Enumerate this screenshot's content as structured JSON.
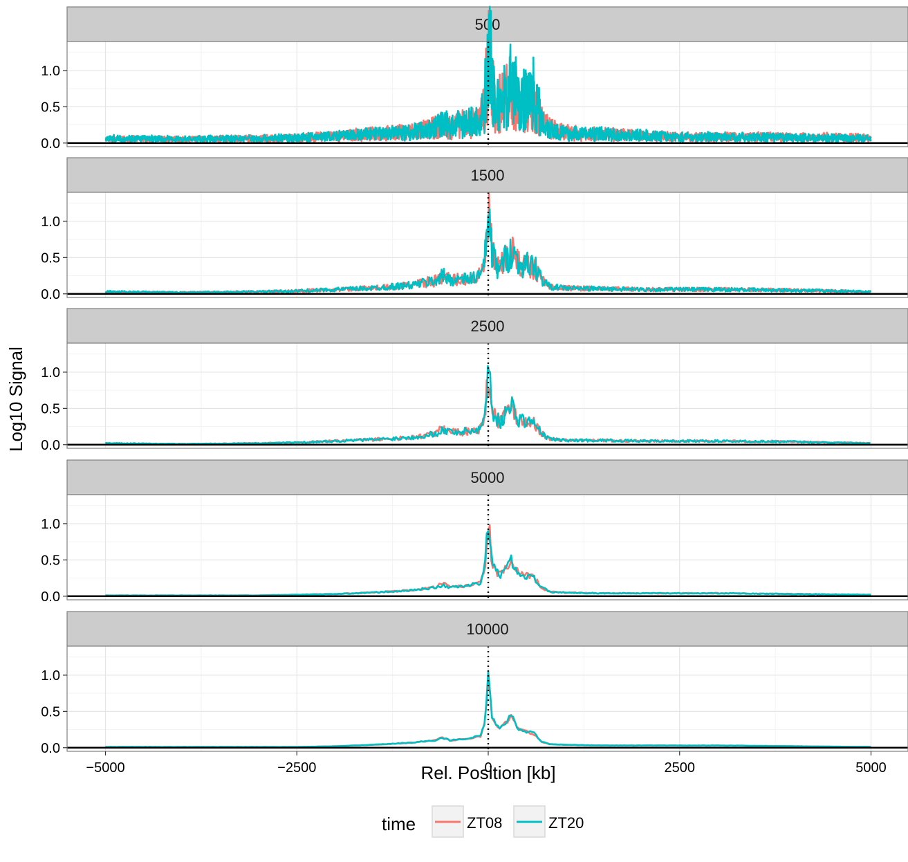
{
  "chart_data": {
    "type": "line",
    "facet_variable": "bin size",
    "facets": [
      "500",
      "1500",
      "2500",
      "5000",
      "10000"
    ],
    "xlabel": "Rel. Position [kb]",
    "ylabel": "Log10 Signal",
    "xlim": [
      -5000,
      5000
    ],
    "ylim": [
      -0.05,
      1.4
    ],
    "x_ticks": [
      -5000,
      -2500,
      0,
      2500,
      5000
    ],
    "x_tick_labels": [
      "−5000",
      "−2500",
      "0",
      "2500",
      "5000"
    ],
    "y_ticks": [
      0.0,
      0.5,
      1.0
    ],
    "y_tick_labels": [
      "0.0",
      "0.5",
      "1.0"
    ],
    "reference_lines": {
      "vertical_dotted_x": 0,
      "horizontal_solid_y": 0
    },
    "legend": {
      "title": "time",
      "position": "bottom",
      "entries": [
        "ZT08",
        "ZT20"
      ]
    },
    "series_colors": {
      "ZT08": "#F8766D",
      "ZT20": "#00BFC4"
    },
    "grid": true,
    "profile_x": [
      -5000,
      -4000,
      -3000,
      -2500,
      -2000,
      -1500,
      -1000,
      -700,
      -600,
      -500,
      -300,
      -100,
      -50,
      0,
      20,
      50,
      100,
      150,
      200,
      250,
      300,
      400,
      500,
      600,
      700,
      800,
      1000,
      1500,
      2000,
      2500,
      3000,
      4000,
      5000
    ],
    "panels": [
      {
        "facet": "500",
        "series": [
          {
            "name": "ZT08",
            "values": [
              0.05,
              0.05,
              0.06,
              0.07,
              0.09,
              0.12,
              0.15,
              0.2,
              0.25,
              0.22,
              0.26,
              0.3,
              0.55,
              1.05,
              1.25,
              0.75,
              0.45,
              0.55,
              0.6,
              0.65,
              0.72,
              0.55,
              0.55,
              0.5,
              0.3,
              0.2,
              0.14,
              0.12,
              0.1,
              0.08,
              0.08,
              0.08,
              0.07
            ]
          },
          {
            "name": "ZT20",
            "values": [
              0.06,
              0.05,
              0.06,
              0.07,
              0.09,
              0.12,
              0.15,
              0.2,
              0.28,
              0.22,
              0.27,
              0.3,
              0.55,
              1.1,
              1.28,
              0.78,
              0.45,
              0.55,
              0.6,
              0.65,
              0.85,
              0.55,
              0.6,
              0.7,
              0.3,
              0.2,
              0.13,
              0.12,
              0.1,
              0.08,
              0.08,
              0.07,
              0.06
            ]
          }
        ]
      },
      {
        "facet": "1500",
        "series": [
          {
            "name": "ZT08",
            "values": [
              0.02,
              0.02,
              0.03,
              0.04,
              0.06,
              0.08,
              0.12,
              0.18,
              0.25,
              0.2,
              0.2,
              0.25,
              0.4,
              0.95,
              1.05,
              0.55,
              0.4,
              0.32,
              0.45,
              0.5,
              0.6,
              0.4,
              0.4,
              0.35,
              0.2,
              0.1,
              0.08,
              0.07,
              0.06,
              0.06,
              0.06,
              0.05,
              0.03
            ]
          },
          {
            "name": "ZT20",
            "values": [
              0.03,
              0.02,
              0.03,
              0.04,
              0.06,
              0.08,
              0.12,
              0.18,
              0.25,
              0.2,
              0.2,
              0.25,
              0.4,
              1.0,
              1.08,
              0.55,
              0.4,
              0.32,
              0.45,
              0.5,
              0.62,
              0.4,
              0.4,
              0.4,
              0.2,
              0.1,
              0.08,
              0.07,
              0.06,
              0.06,
              0.06,
              0.05,
              0.03
            ]
          }
        ]
      },
      {
        "facet": "2500",
        "series": [
          {
            "name": "ZT08",
            "values": [
              0.01,
              0.01,
              0.02,
              0.03,
              0.05,
              0.07,
              0.1,
              0.15,
              0.22,
              0.18,
              0.18,
              0.22,
              0.38,
              0.95,
              1.0,
              0.5,
              0.38,
              0.3,
              0.4,
              0.45,
              0.53,
              0.35,
              0.33,
              0.3,
              0.15,
              0.08,
              0.06,
              0.06,
              0.05,
              0.05,
              0.05,
              0.04,
              0.02
            ]
          },
          {
            "name": "ZT20",
            "values": [
              0.02,
              0.01,
              0.02,
              0.03,
              0.05,
              0.07,
              0.1,
              0.15,
              0.2,
              0.18,
              0.18,
              0.22,
              0.38,
              1.0,
              1.02,
              0.5,
              0.38,
              0.3,
              0.4,
              0.45,
              0.55,
              0.35,
              0.33,
              0.3,
              0.15,
              0.08,
              0.06,
              0.06,
              0.05,
              0.05,
              0.05,
              0.04,
              0.02
            ]
          }
        ]
      },
      {
        "facet": "5000",
        "series": [
          {
            "name": "ZT08",
            "values": [
              0.01,
              0.01,
              0.01,
              0.02,
              0.03,
              0.05,
              0.08,
              0.12,
              0.18,
              0.12,
              0.14,
              0.18,
              0.35,
              0.95,
              0.85,
              0.45,
              0.35,
              0.28,
              0.35,
              0.4,
              0.48,
              0.3,
              0.28,
              0.25,
              0.12,
              0.06,
              0.05,
              0.04,
              0.04,
              0.04,
              0.04,
              0.03,
              0.02
            ]
          },
          {
            "name": "ZT20",
            "values": [
              0.01,
              0.01,
              0.01,
              0.02,
              0.03,
              0.05,
              0.08,
              0.12,
              0.15,
              0.12,
              0.14,
              0.18,
              0.35,
              1.0,
              0.9,
              0.45,
              0.35,
              0.28,
              0.35,
              0.4,
              0.5,
              0.3,
              0.28,
              0.25,
              0.12,
              0.06,
              0.05,
              0.04,
              0.04,
              0.04,
              0.04,
              0.03,
              0.02
            ]
          }
        ]
      },
      {
        "facet": "10000",
        "series": [
          {
            "name": "ZT08",
            "values": [
              0.01,
              0.01,
              0.01,
              0.01,
              0.02,
              0.04,
              0.07,
              0.1,
              0.14,
              0.1,
              0.12,
              0.16,
              0.32,
              0.92,
              0.8,
              0.42,
              0.32,
              0.25,
              0.32,
              0.37,
              0.42,
              0.25,
              0.22,
              0.18,
              0.08,
              0.05,
              0.04,
              0.03,
              0.03,
              0.03,
              0.03,
              0.02,
              0.01
            ]
          },
          {
            "name": "ZT20",
            "values": [
              0.01,
              0.01,
              0.01,
              0.01,
              0.02,
              0.04,
              0.07,
              0.1,
              0.14,
              0.1,
              0.12,
              0.16,
              0.32,
              0.98,
              0.85,
              0.42,
              0.32,
              0.25,
              0.32,
              0.37,
              0.45,
              0.25,
              0.22,
              0.2,
              0.08,
              0.05,
              0.04,
              0.03,
              0.03,
              0.03,
              0.03,
              0.02,
              0.01
            ]
          }
        ]
      }
    ]
  }
}
